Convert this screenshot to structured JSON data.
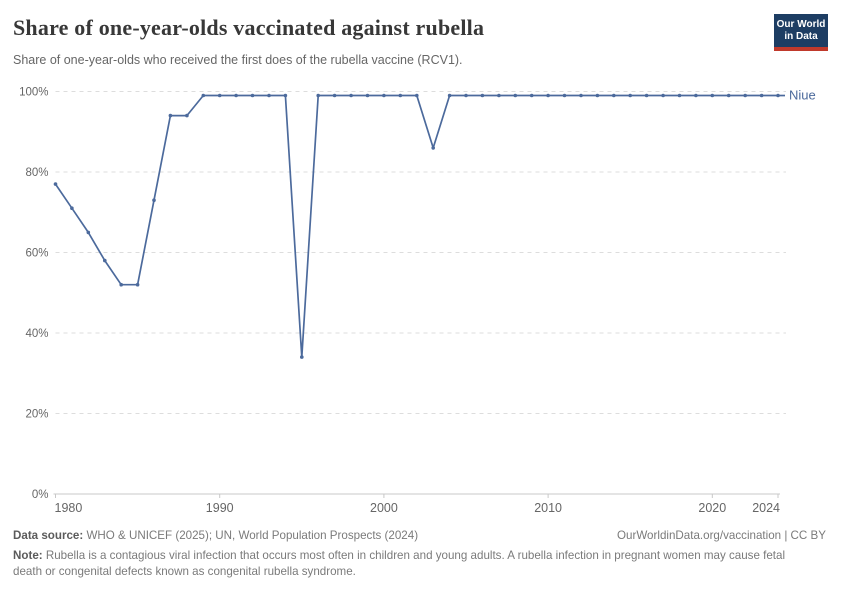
{
  "header": {
    "title": "Share of one-year-olds vaccinated against rubella",
    "subtitle": "Share of one-year-olds who received the first does of the rubella vaccine (RCV1).",
    "logo": {
      "line1": "Our World",
      "line2": "in Data"
    }
  },
  "colors": {
    "line": "#4C6A9C",
    "entity_label": "#4C6A9C",
    "grid": "#DDDDDD",
    "axis": "#C8C8C8",
    "tick_label": "#666666",
    "logo_bg": "#1D3D63",
    "logo_red": "#C0392B"
  },
  "chart_data": {
    "type": "line",
    "title": "Share of one-year-olds vaccinated against rubella",
    "xlabel": "",
    "ylabel": "",
    "xlim": [
      1980,
      2024
    ],
    "ylim": [
      0,
      100
    ],
    "xticks": [
      1980,
      1990,
      2000,
      2010,
      2020,
      2024
    ],
    "yticks": [
      0,
      20,
      40,
      60,
      80,
      100
    ],
    "ytick_suffix": "%",
    "grid": "horizontal-dashed",
    "legend_position": "label-at-line-end",
    "entity_label": "Niue",
    "series": [
      {
        "name": "Niue",
        "color": "#4C6A9C",
        "x": [
          1980,
          1981,
          1982,
          1983,
          1984,
          1985,
          1986,
          1987,
          1988,
          1989,
          1990,
          1991,
          1992,
          1993,
          1994,
          1995,
          1996,
          1997,
          1998,
          1999,
          2000,
          2001,
          2002,
          2003,
          2004,
          2005,
          2006,
          2007,
          2008,
          2009,
          2010,
          2011,
          2012,
          2013,
          2014,
          2015,
          2016,
          2017,
          2018,
          2019,
          2020,
          2021,
          2022,
          2023,
          2024
        ],
        "values": [
          77,
          71,
          65,
          58,
          52,
          52,
          73,
          94,
          94,
          99,
          99,
          99,
          99,
          99,
          99,
          34,
          99,
          99,
          99,
          99,
          99,
          99,
          99,
          86,
          99,
          99,
          99,
          99,
          99,
          99,
          99,
          99,
          99,
          99,
          99,
          99,
          99,
          99,
          99,
          99,
          99,
          99,
          99,
          99,
          99
        ]
      }
    ]
  },
  "footer": {
    "source_label": "Data source:",
    "source_text": " WHO & UNICEF (2025); UN, World Population Prospects (2024)",
    "link_text": "OurWorldinData.org/vaccination | CC BY",
    "note_label": "Note:",
    "note_text": " Rubella is a contagious viral infection that occurs most often in children and young adults. A rubella infection in pregnant women may cause fetal death or congenital defects known as congenital rubella syndrome."
  }
}
